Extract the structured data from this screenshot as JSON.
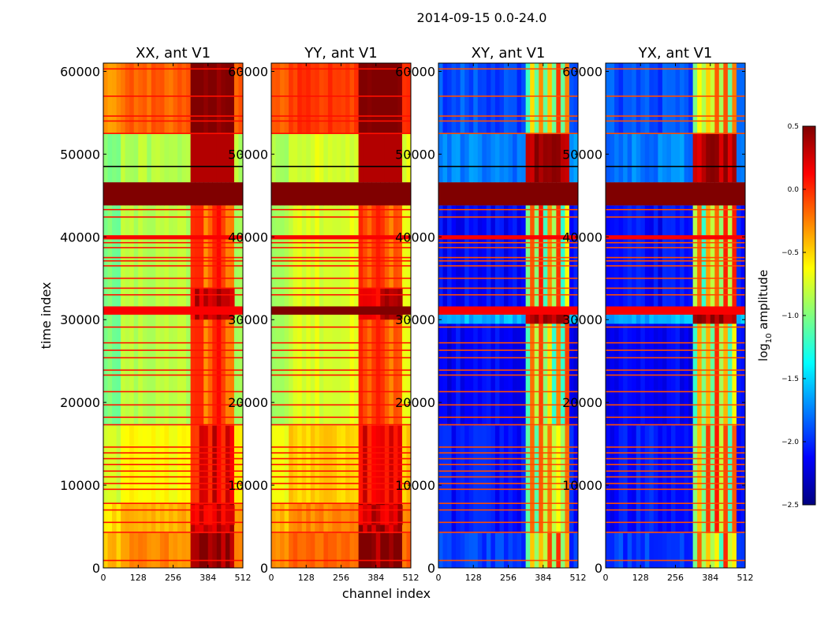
{
  "chart_data": {
    "type": "heatmap",
    "title": "2014-09-15 0.0-24.0",
    "xlabel": "channel index",
    "ylabel": "time index",
    "xlim": [
      0,
      512
    ],
    "ylim": [
      0,
      61000
    ],
    "x_ticks": [
      "0",
      "128",
      "256",
      "384",
      "512"
    ],
    "y_ticks": [
      "0",
      "10000",
      "20000",
      "30000",
      "40000",
      "50000",
      "60000"
    ],
    "panels": [
      {
        "title": "XX, ant V1",
        "kind": "parallel"
      },
      {
        "title": "YY, ant V1",
        "kind": "parallel"
      },
      {
        "title": "XY, ant V1",
        "kind": "cross"
      },
      {
        "title": "YX, ant V1",
        "kind": "cross"
      }
    ],
    "colorbar": {
      "label": "log10 amplitude",
      "range": [
        -2.5,
        0.5
      ],
      "ticks": [
        "0.5",
        "0.0",
        "−0.5",
        "−1.0",
        "−1.5",
        "−2.0",
        "−2.5"
      ],
      "colormap": "jet"
    },
    "colors": {
      "jet_dark_blue": "#00007f",
      "jet_blue": "#0000ff",
      "jet_cyan": "#00ffff",
      "jet_yellow": "#ffff00",
      "jet_red": "#ff0000",
      "jet_dark_red": "#7f0000"
    }
  }
}
